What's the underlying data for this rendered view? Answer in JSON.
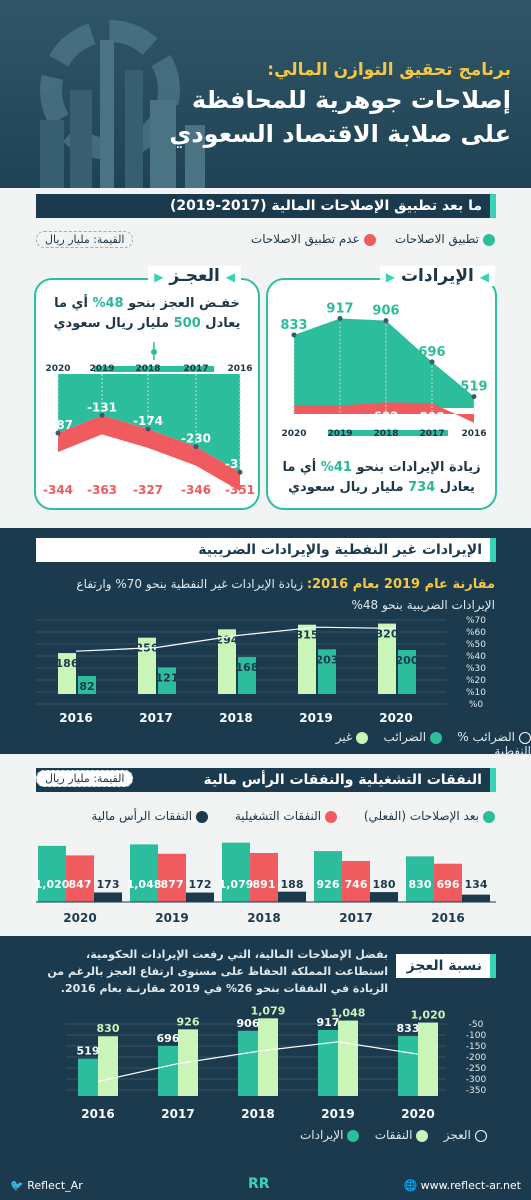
{
  "header": {
    "line1": "برنامج تحقيق التوازن المالي:",
    "line2": "إصلاحات جوهرية للمحافظة",
    "line3": "على صلابة الاقتصاد السعودي"
  },
  "sec1": {
    "title": "ما بعد تطبيق الإصلاحات المالية (2017-2019)",
    "legend_with": "تطبيق الاصلاحات",
    "legend_without": "عدم تطبيق الاصلاحات",
    "unit": "القيمة: مليار ريال",
    "revenue": {
      "title": "الإيرادات",
      "years": [
        "2020",
        "2019",
        "2018",
        "2017",
        "2016"
      ],
      "with": [
        833,
        917,
        906,
        696,
        519
      ],
      "without": [
        588,
        585,
        602,
        598,
        498
      ],
      "note_pre": "زيادة الإيرادات بنحو",
      "note_pct": "41%",
      "note_mid": "أي ما",
      "note_l2_pre": "يعادل",
      "note_val": "734",
      "note_l2_post": "مليار ريال سعودي"
    },
    "deficit": {
      "title": "العجـز",
      "years": [
        "2020",
        "2019",
        "2018",
        "2017",
        "2016"
      ],
      "with": [
        -187,
        -131,
        -174,
        -230,
        -311
      ],
      "without": [
        -344,
        -363,
        -327,
        -346,
        -351
      ],
      "note_pre": "خفـض العجز بنحو",
      "note_pct": "48%",
      "note_mid": "أي ما",
      "note_l2_pre": "يعادل",
      "note_val": "500",
      "note_l2_post": "مليار ريال سعودي"
    }
  },
  "sec2": {
    "title": "الإيرادات غير النفطية والإيرادات الضريبية",
    "subtitle_bold": "مقارنة عام 2019 بعام 2016:",
    "subtitle_rest": "زيادة الإيرادات غير النفطية بنحو 70% وارتفاع",
    "subtitle_l2": "الإيرادات الضريبية بنحو 48%",
    "legend_nonoil": "غير النفطية",
    "legend_tax": "الضرائب",
    "legend_taxpct": "الضرائب %"
  },
  "sec3": {
    "title": "النفقات التشغيلية والنفقات الرأس مالية",
    "unit": "القيمة: مليار ريال",
    "legend_after": "بعد الإصلاحات (الفعلي)",
    "legend_opex": "النفقات التشغيلية",
    "legend_capex": "النفقات الرأس مالية"
  },
  "sec4": {
    "title": "نسبة العجز",
    "text_l1": "بفضل الإصلاحات المالية، التي رفعت الإيرادات الحكومية،",
    "text_l2": "استطاعت المملكة الحفاظ على مستوى ارتفاع العجز بالرغم من",
    "text_l3": "الزيادة في النفقات بنحو 26% في 2019 مقارنـة بعام 2016.",
    "legend_rev": "الإيرادات",
    "legend_exp": "النفقات",
    "legend_def": "العجز"
  },
  "chart_data": [
    {
      "type": "area",
      "title": "الإيرادات",
      "x": [
        "2020",
        "2019",
        "2018",
        "2017",
        "2016"
      ],
      "series": [
        {
          "name": "تطبيق الاصلاحات",
          "values": [
            833,
            917,
            906,
            696,
            519
          ]
        },
        {
          "name": "عدم تطبيق الاصلاحات",
          "values": [
            588,
            585,
            602,
            598,
            498
          ]
        }
      ]
    },
    {
      "type": "area",
      "title": "العجـز",
      "x": [
        "2020",
        "2019",
        "2018",
        "2017",
        "2016"
      ],
      "series": [
        {
          "name": "تطبيق الاصلاحات",
          "values": [
            -187,
            -131,
            -174,
            -230,
            -311
          ]
        },
        {
          "name": "عدم تطبيق الاصلاحات",
          "values": [
            -344,
            -363,
            -327,
            -346,
            -351
          ]
        }
      ]
    },
    {
      "type": "bar",
      "title": "الإيرادات غير النفطية والإيرادات الضريبية",
      "categories": [
        "2016",
        "2017",
        "2018",
        "2019",
        "2020"
      ],
      "series": [
        {
          "name": "غير النفطية",
          "values": [
            186,
            256,
            294,
            315,
            320
          ]
        },
        {
          "name": "الضرائب",
          "values": [
            82,
            121,
            168,
            203,
            200
          ]
        },
        {
          "name": "الضرائب %",
          "values": [
            44,
            47,
            57,
            64,
            63
          ]
        }
      ],
      "y2_ticks": [
        "%70",
        "%60",
        "%50",
        "%40",
        "%30",
        "%20",
        "%10",
        "%0"
      ],
      "y2lim": [
        0,
        70
      ]
    },
    {
      "type": "bar",
      "title": "النفقات التشغيلية والنفقات الرأس مالية",
      "categories": [
        "2020",
        "2019",
        "2018",
        "2017",
        "2016"
      ],
      "series": [
        {
          "name": "بعد الإصلاحات (الفعلي)",
          "values": [
            1020,
            1048,
            1079,
            926,
            830
          ]
        },
        {
          "name": "النفقات التشغيلية",
          "values": [
            847,
            877,
            891,
            746,
            696
          ]
        },
        {
          "name": "النفقات الرأس مالية",
          "values": [
            173,
            172,
            188,
            180,
            134
          ]
        }
      ]
    },
    {
      "type": "bar",
      "title": "نسبة العجز",
      "categories": [
        "2016",
        "2017",
        "2018",
        "2019",
        "2020"
      ],
      "series": [
        {
          "name": "الإيرادات",
          "values": [
            519,
            696,
            906,
            917,
            833
          ]
        },
        {
          "name": "النفقات",
          "values": [
            830,
            926,
            1079,
            1048,
            1020
          ]
        },
        {
          "name": "العجز",
          "values": [
            -311,
            -230,
            -174,
            -131,
            -187
          ]
        }
      ],
      "y2_ticks": [
        "-50",
        "-100",
        "-150",
        "-200",
        "-250",
        "-300",
        "-350"
      ],
      "y2lim": [
        -350,
        0
      ]
    }
  ],
  "footer": {
    "twitter": "Reflect_Ar",
    "website": "www.reflect-ar.net",
    "logo": "RR"
  },
  "colors": {
    "teal": "#36d3b4",
    "coral": "#ef5b5e",
    "navy": "#1c3a4d",
    "lime": "#c9f5b8",
    "yellow": "#f5c842"
  }
}
